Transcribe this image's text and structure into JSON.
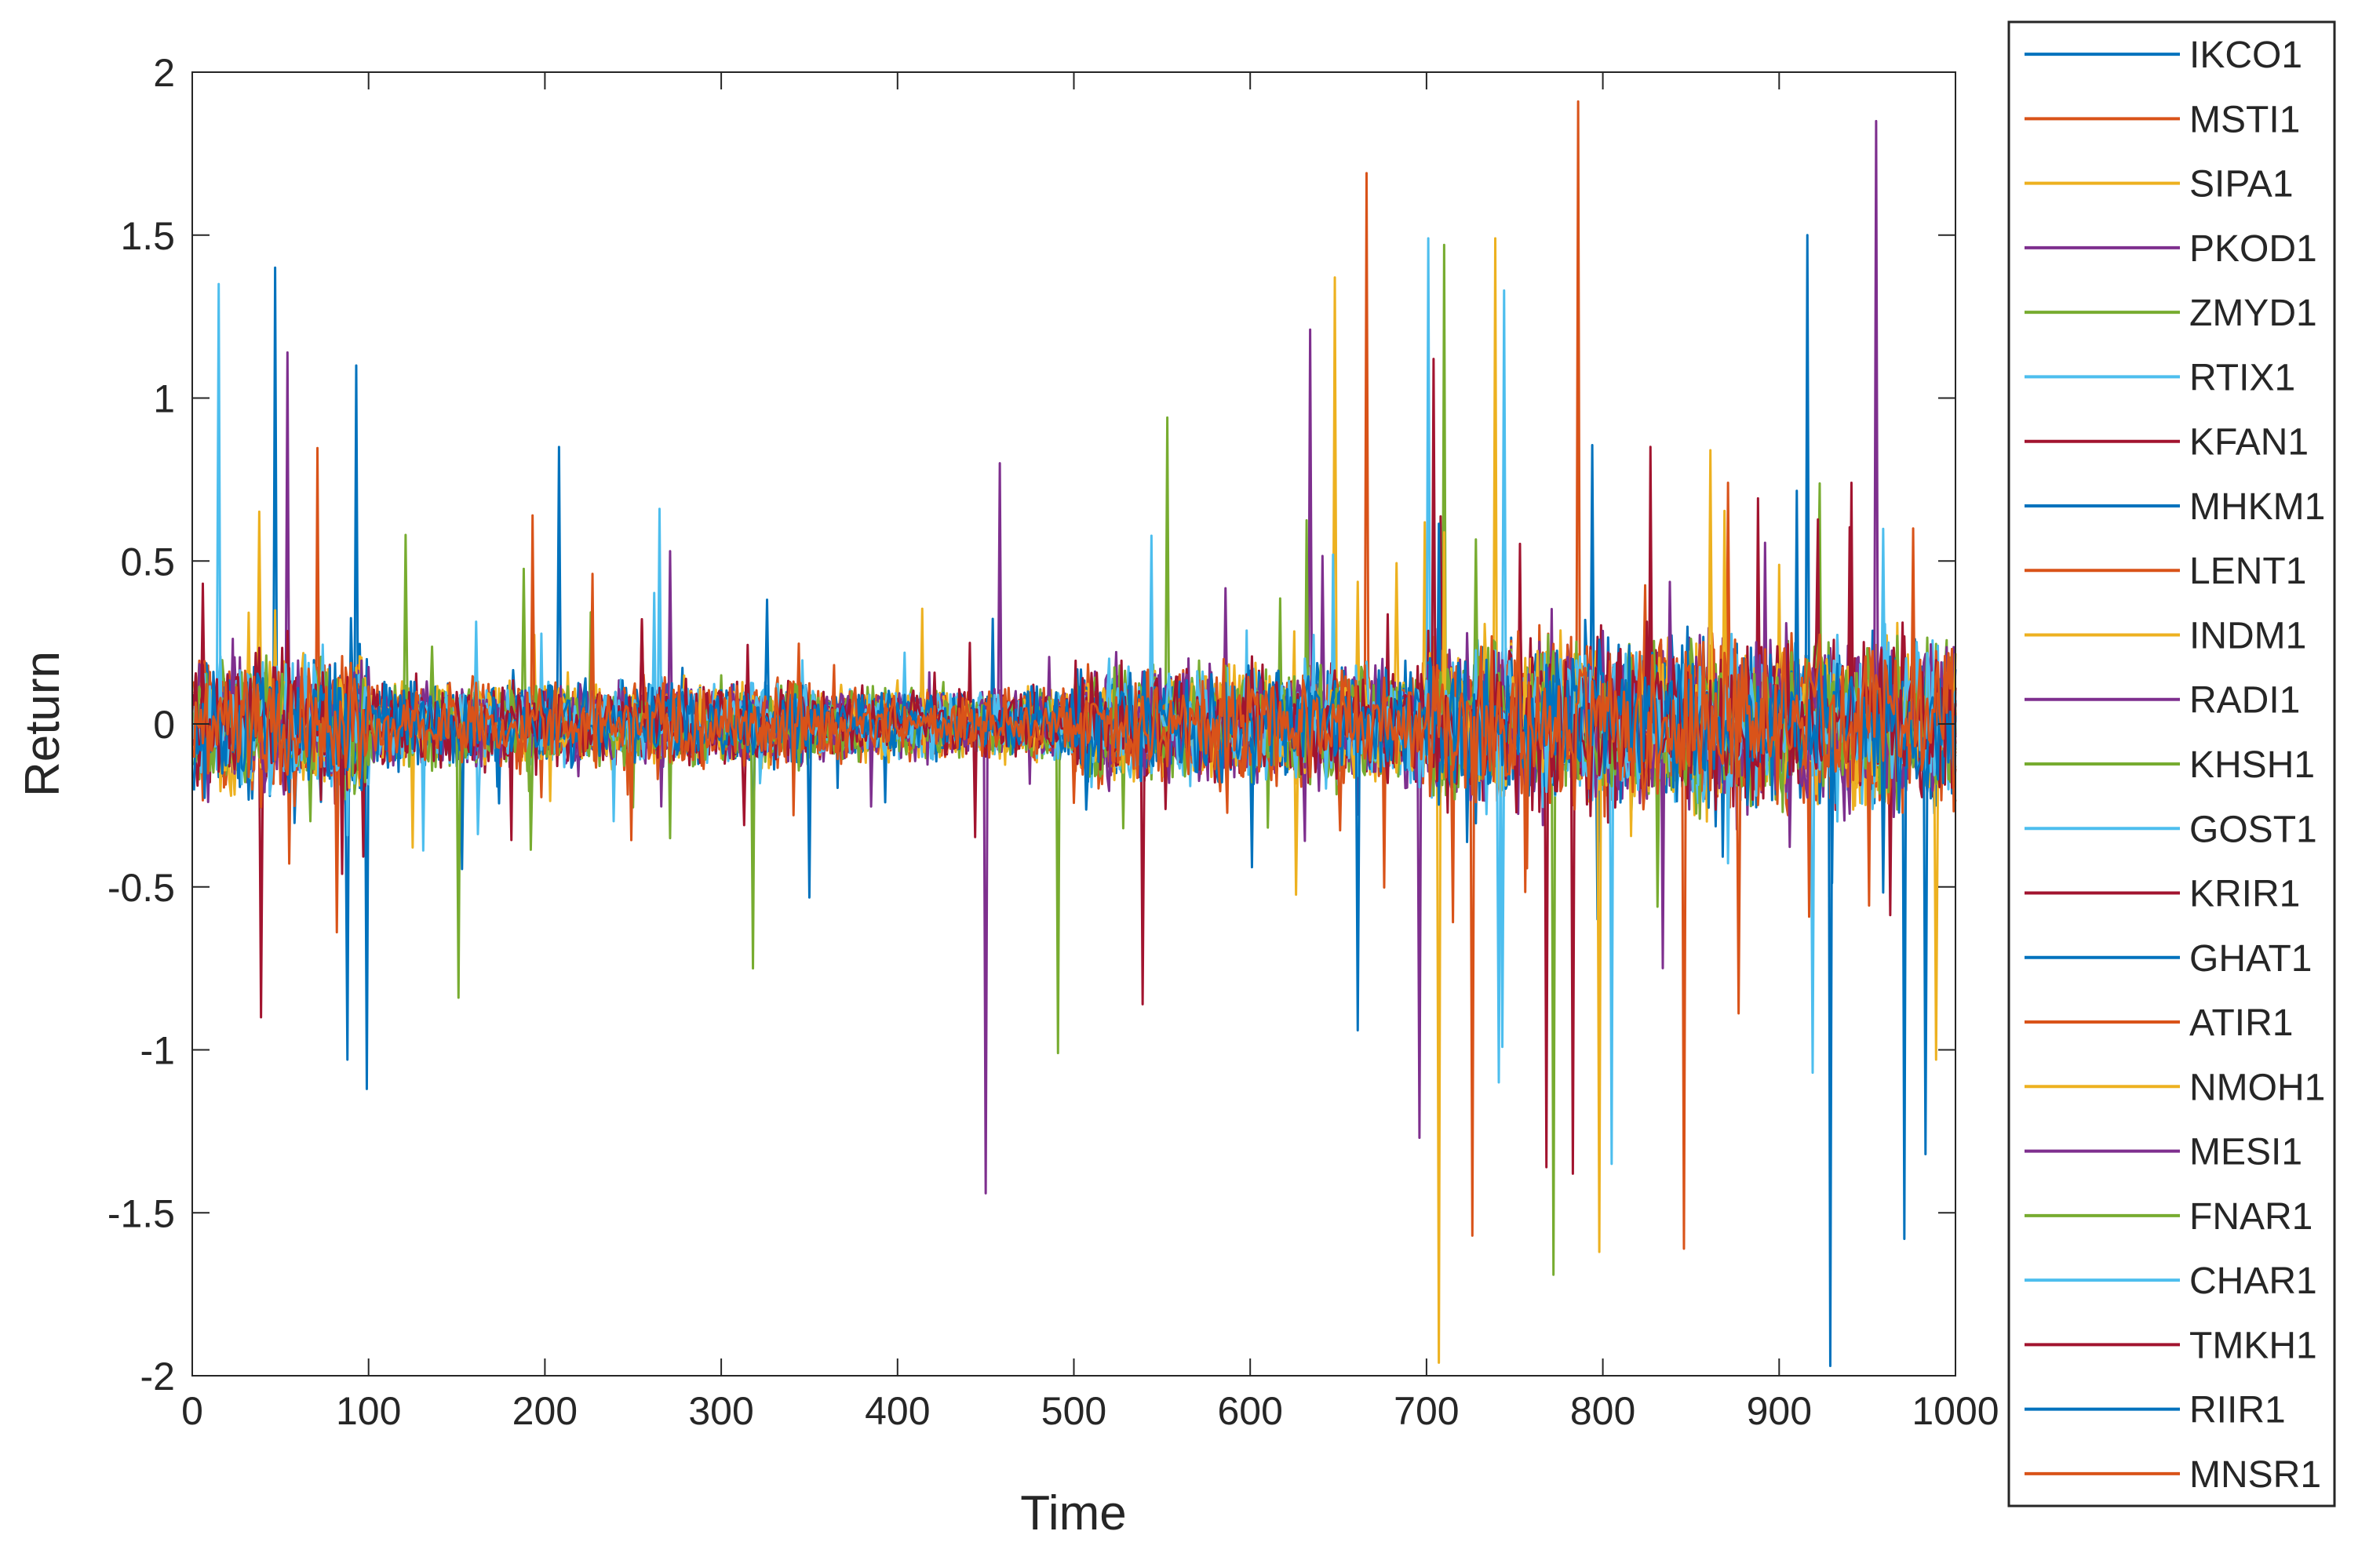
{
  "chart_data": {
    "type": "line",
    "title": "",
    "xlabel": "Time",
    "ylabel": "Return",
    "xlim": [
      0,
      1000
    ],
    "ylim": [
      -2,
      2
    ],
    "xticks": [
      "0",
      "100",
      "200",
      "300",
      "400",
      "500",
      "600",
      "700",
      "800",
      "900",
      "1000"
    ],
    "yticks": [
      "2",
      "1.5",
      "1",
      "0.5",
      "0",
      "-0.5",
      "-1",
      "-1.5",
      "-2"
    ],
    "grid": false,
    "legend_position": "right-outside",
    "n_points": 1000,
    "series": [
      {
        "name": "IKCO1",
        "color": "#0072BD",
        "spikes": [
          [
            46,
            1.4
          ],
          [
            98,
            -1.12
          ],
          [
            92,
            1.1
          ],
          [
            87,
            -1.03
          ]
        ]
      },
      {
        "name": "MSTI1",
        "color": "#D95319",
        "spikes": [
          [
            665,
            1.69
          ],
          [
            725,
            -1.57
          ]
        ]
      },
      {
        "name": "SIPA1",
        "color": "#EDB120",
        "spikes": [
          [
            706,
            -1.96
          ],
          [
            647,
            1.37
          ],
          [
            738,
            1.49
          ]
        ]
      },
      {
        "name": "PKOD1",
        "color": "#7E2F8E",
        "spikes": [
          [
            449,
            -1.44
          ],
          [
            954,
            1.85
          ],
          [
            53,
            1.14
          ]
        ]
      },
      {
        "name": "ZMYD1",
        "color": "#77AC30",
        "spikes": [
          [
            771,
            -1.69
          ],
          [
            709,
            1.47
          ],
          [
            552,
            0.94
          ]
        ]
      },
      {
        "name": "RTIX1",
        "color": "#4DBEEE",
        "spikes": [
          [
            14,
            1.35
          ],
          [
            700,
            1.49
          ],
          [
            743,
            1.33
          ]
        ]
      },
      {
        "name": "KFAN1",
        "color": "#A2142F",
        "spikes": [
          [
            38,
            -0.9
          ],
          [
            538,
            -0.86
          ]
        ]
      },
      {
        "name": "MHKM1",
        "color": "#0072BD",
        "spikes": [
          [
            915,
            1.5
          ],
          [
            207,
            0.85
          ]
        ]
      },
      {
        "name": "LENT1",
        "color": "#D95319",
        "spikes": [
          [
            785,
            1.91
          ],
          [
            845,
            -1.61
          ]
        ]
      },
      {
        "name": "INDM1",
        "color": "#EDB120",
        "spikes": [
          [
            797,
            -1.62
          ]
        ]
      },
      {
        "name": "RADI1",
        "color": "#7E2F8E",
        "spikes": [
          [
            633,
            1.21
          ],
          [
            695,
            -1.27
          ]
        ]
      },
      {
        "name": "KHSH1",
        "color": "#77AC30",
        "spikes": [
          [
            490,
            -1.01
          ],
          [
            317,
            -0.75
          ]
        ]
      },
      {
        "name": "GOST1",
        "color": "#4DBEEE",
        "spikes": [
          [
            804,
            -1.35
          ],
          [
            918,
            -1.07
          ]
        ]
      },
      {
        "name": "KRIR1",
        "color": "#A2142F",
        "spikes": [
          [
            703,
            1.12
          ],
          [
            767,
            -1.36
          ]
        ]
      },
      {
        "name": "GHAT1",
        "color": "#0072BD",
        "spikes": [
          [
            928,
            -1.97
          ],
          [
            970,
            -1.58
          ]
        ]
      },
      {
        "name": "ATIR1",
        "color": "#D95319",
        "spikes": [
          [
            192,
            0.64
          ],
          [
            870,
            0.74
          ]
        ]
      },
      {
        "name": "NMOH1",
        "color": "#EDB120",
        "spikes": [
          [
            988,
            -1.03
          ],
          [
            860,
            0.84
          ]
        ]
      },
      {
        "name": "MESI1",
        "color": "#7E2F8E",
        "spikes": [
          [
            457,
            0.8
          ],
          [
            270,
            0.53
          ]
        ]
      },
      {
        "name": "FNAR1",
        "color": "#77AC30",
        "spikes": [
          [
            150,
            -0.84
          ],
          [
            120,
            0.58
          ]
        ]
      },
      {
        "name": "CHAR1",
        "color": "#4DBEEE",
        "spikes": [
          [
            264,
            0.66
          ],
          [
            740,
            -1.1
          ]
        ]
      },
      {
        "name": "TMKH1",
        "color": "#A2142F",
        "spikes": [
          [
            782,
            -1.38
          ],
          [
            940,
            0.74
          ]
        ]
      },
      {
        "name": "RIIR1",
        "color": "#0072BD",
        "spikes": [
          [
            982,
            -1.32
          ],
          [
            660,
            -0.94
          ]
        ]
      },
      {
        "name": "MNSR1",
        "color": "#D95319",
        "spikes": [
          [
            975,
            0.6
          ],
          [
            30,
            0.1
          ]
        ]
      }
    ]
  }
}
